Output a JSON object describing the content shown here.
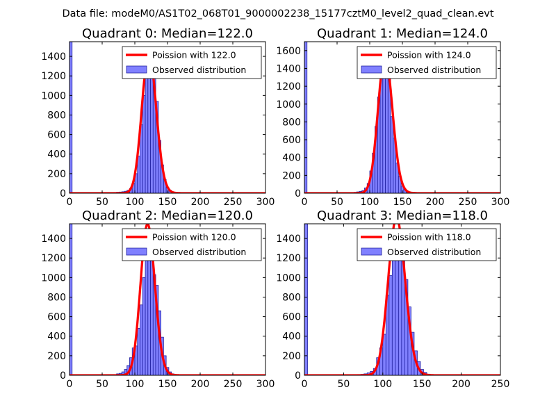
{
  "suptitle": "Data file: modeM0/AS1T02_068T01_9000002238_15177cztM0_level2_quad_clean.evt",
  "colors": {
    "hist_fill": "#8080ff",
    "hist_edge": "#2020a0",
    "poisson": "#ff0000",
    "axes": "#000000"
  },
  "chart_data": [
    {
      "type": "bar",
      "title": "Quadrant 0: Median=122.0",
      "xlim": [
        0,
        300
      ],
      "ylim": [
        0,
        1550
      ],
      "xticks": [
        "0",
        "50",
        "100",
        "150",
        "200",
        "250",
        "300"
      ],
      "yticks": [
        "0",
        "200",
        "400",
        "600",
        "800",
        "1000",
        "1200",
        "1400"
      ],
      "median": 122.0,
      "legend": {
        "placement": "top-right",
        "line_label": "Poission with 122.0",
        "bar_label": "Observed distribution"
      },
      "bin_width": 4,
      "bins": [
        [
          0,
          1550
        ],
        [
          68,
          8
        ],
        [
          72,
          10
        ],
        [
          76,
          12
        ],
        [
          80,
          15
        ],
        [
          84,
          20
        ],
        [
          88,
          30
        ],
        [
          92,
          50
        ],
        [
          96,
          100
        ],
        [
          100,
          200
        ],
        [
          104,
          380
        ],
        [
          108,
          700
        ],
        [
          112,
          1000
        ],
        [
          116,
          1380
        ],
        [
          120,
          1460
        ],
        [
          124,
          1300
        ],
        [
          128,
          1230
        ],
        [
          132,
          940
        ],
        [
          136,
          540
        ],
        [
          140,
          290
        ],
        [
          144,
          140
        ],
        [
          148,
          60
        ],
        [
          152,
          30
        ],
        [
          156,
          15
        ],
        [
          160,
          8
        ]
      ]
    },
    {
      "type": "bar",
      "title": "Quadrant 1: Median=124.0",
      "xlim": [
        0,
        300
      ],
      "ylim": [
        0,
        1700
      ],
      "xticks": [
        "0",
        "50",
        "100",
        "150",
        "200",
        "250",
        "300"
      ],
      "yticks": [
        "0",
        "200",
        "400",
        "600",
        "800",
        "1000",
        "1200",
        "1400",
        "1600"
      ],
      "median": 124.0,
      "legend": {
        "placement": "top-right",
        "line_label": "Poission with 124.0",
        "bar_label": "Observed distribution"
      },
      "bin_width": 4,
      "bins": [
        [
          0,
          1700
        ],
        [
          72,
          8
        ],
        [
          76,
          10
        ],
        [
          80,
          15
        ],
        [
          84,
          20
        ],
        [
          88,
          30
        ],
        [
          92,
          60
        ],
        [
          96,
          110
        ],
        [
          100,
          250
        ],
        [
          104,
          450
        ],
        [
          108,
          750
        ],
        [
          112,
          1080
        ],
        [
          116,
          1390
        ],
        [
          120,
          1540
        ],
        [
          124,
          1520
        ],
        [
          128,
          1380
        ],
        [
          132,
          860
        ],
        [
          136,
          620
        ],
        [
          140,
          340
        ],
        [
          144,
          190
        ],
        [
          148,
          80
        ],
        [
          152,
          40
        ],
        [
          156,
          20
        ],
        [
          160,
          10
        ]
      ]
    },
    {
      "type": "bar",
      "title": "Quadrant 2: Median=120.0",
      "xlim": [
        0,
        300
      ],
      "ylim": [
        0,
        1550
      ],
      "xticks": [
        "0",
        "50",
        "100",
        "150",
        "200",
        "250",
        "300"
      ],
      "yticks": [
        "0",
        "200",
        "400",
        "600",
        "800",
        "1000",
        "1200",
        "1400"
      ],
      "median": 120.0,
      "legend": {
        "placement": "top-right",
        "line_label": "Poission with 120.0",
        "bar_label": "Observed distribution"
      },
      "bin_width": 4,
      "bins": [
        [
          0,
          1550
        ],
        [
          72,
          15
        ],
        [
          76,
          20
        ],
        [
          80,
          35
        ],
        [
          84,
          60
        ],
        [
          88,
          100
        ],
        [
          92,
          180
        ],
        [
          96,
          280
        ],
        [
          100,
          300
        ],
        [
          104,
          480
        ],
        [
          108,
          720
        ],
        [
          112,
          1000
        ],
        [
          116,
          1300
        ],
        [
          120,
          1450
        ],
        [
          124,
          1360
        ],
        [
          128,
          1030
        ],
        [
          132,
          920
        ],
        [
          136,
          660
        ],
        [
          140,
          390
        ],
        [
          144,
          200
        ],
        [
          148,
          80
        ],
        [
          152,
          35
        ],
        [
          156,
          15
        ]
      ]
    },
    {
      "type": "bar",
      "title": "Quadrant 3: Median=118.0",
      "xlim": [
        0,
        250
      ],
      "ylim": [
        0,
        1550
      ],
      "xticks": [
        "0",
        "50",
        "100",
        "150",
        "200",
        "250"
      ],
      "yticks": [
        "0",
        "200",
        "400",
        "600",
        "800",
        "1000",
        "1200",
        "1400"
      ],
      "median": 118.0,
      "legend": {
        "placement": "top-right",
        "line_label": "Poission with 118.0",
        "bar_label": "Observed distribution"
      },
      "bin_width": 4,
      "bins": [
        [
          0,
          1550
        ],
        [
          64,
          5
        ],
        [
          68,
          8
        ],
        [
          72,
          10
        ],
        [
          76,
          15
        ],
        [
          80,
          25
        ],
        [
          84,
          40
        ],
        [
          88,
          70
        ],
        [
          92,
          180
        ],
        [
          96,
          280
        ],
        [
          100,
          420
        ],
        [
          104,
          820
        ],
        [
          108,
          1020
        ],
        [
          112,
          1320
        ],
        [
          116,
          1400
        ],
        [
          120,
          1430
        ],
        [
          124,
          1300
        ],
        [
          128,
          980
        ],
        [
          132,
          700
        ],
        [
          136,
          440
        ],
        [
          140,
          250
        ],
        [
          144,
          140
        ],
        [
          148,
          60
        ],
        [
          152,
          30
        ],
        [
          156,
          12
        ]
      ]
    }
  ]
}
